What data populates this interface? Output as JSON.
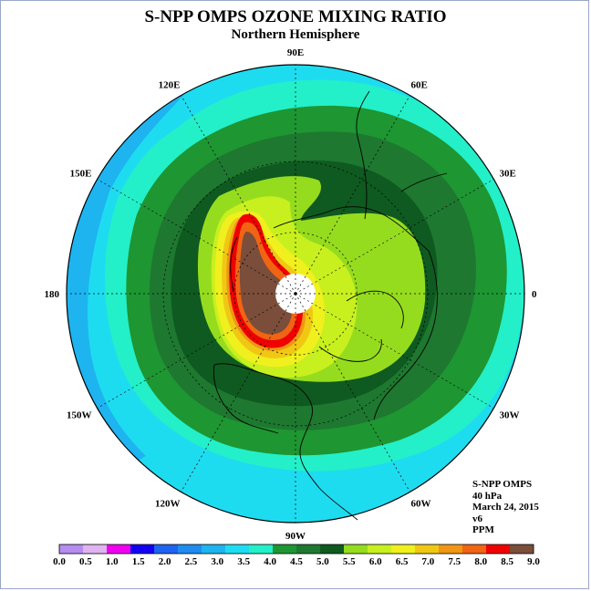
{
  "title": "S-NPP OMPS OZONE MIXING RATIO",
  "subtitle": "Northern Hemisphere",
  "longitude_labels": [
    {
      "text": "90E",
      "lon": 90
    },
    {
      "text": "60E",
      "lon": 60
    },
    {
      "text": "30E",
      "lon": 30
    },
    {
      "text": "0",
      "lon": 0
    },
    {
      "text": "30W",
      "lon": -30
    },
    {
      "text": "60W",
      "lon": -60
    },
    {
      "text": "90W",
      "lon": -90
    },
    {
      "text": "120W",
      "lon": -120
    },
    {
      "text": "150W",
      "lon": -150
    },
    {
      "text": "180",
      "lon": 180
    },
    {
      "text": "150E",
      "lon": 150
    },
    {
      "text": "120E",
      "lon": 120
    }
  ],
  "info": {
    "instrument": "S-NPP OMPS",
    "level": "40 hPa",
    "date": "March 24, 2015",
    "version": "v6",
    "units": "PPM"
  },
  "colorbar": {
    "ticks": [
      "0.0",
      "0.5",
      "1.0",
      "1.5",
      "2.0",
      "2.5",
      "3.0",
      "3.5",
      "4.0",
      "4.5",
      "5.0",
      "5.5",
      "6.0",
      "6.5",
      "7.0",
      "7.5",
      "8.0",
      "8.5",
      "9.0"
    ],
    "colors": [
      "#b58cf0",
      "#e0b4f0",
      "#f000f0",
      "#1400f0",
      "#1e64f0",
      "#1e8cf0",
      "#1eb4f0",
      "#1edcf0",
      "#23f0c8",
      "#1e9632",
      "#1e7830",
      "#0f5a20",
      "#96dc1e",
      "#c8f01e",
      "#f0f01e",
      "#f0c814",
      "#f09614",
      "#f06414",
      "#f00000",
      "#7a4e3a"
    ]
  },
  "chart_data": {
    "type": "heatmap",
    "projection": "north-polar-stereographic",
    "variable": "ozone mixing ratio",
    "units": "PPM",
    "pressure_level": "40 hPa",
    "date": "March 24, 2015",
    "scale_min": 0.0,
    "scale_max": 9.0,
    "scale_step": 0.5
  }
}
